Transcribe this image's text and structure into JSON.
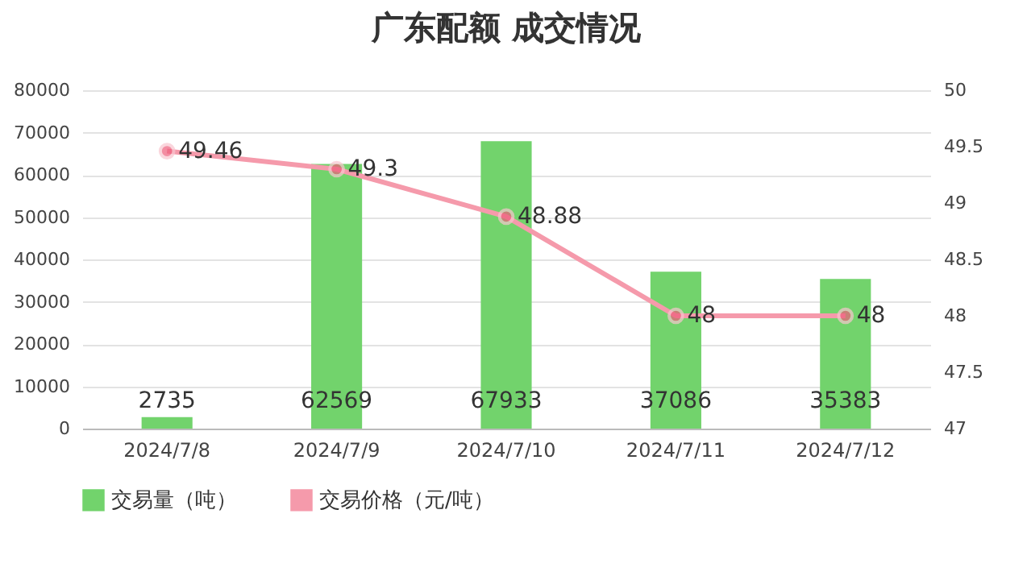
{
  "chart_data": {
    "type": "bar",
    "title": "广东配额 成交情况",
    "categories": [
      "2024/7/8",
      "2024/7/9",
      "2024/7/10",
      "2024/7/11",
      "2024/7/12"
    ],
    "series": [
      {
        "name": "交易量（吨）",
        "color": "#72d36c",
        "values": [
          2735,
          62569,
          67933,
          37086,
          35383
        ]
      },
      {
        "name": "交易价格（元/吨）",
        "type": "line",
        "axis": "y2",
        "color": "#f59aab",
        "marker": "circle",
        "values": [
          49.46,
          49.3,
          48.88,
          48,
          48
        ]
      }
    ],
    "ylim": [
      0,
      80000
    ],
    "yticks": [
      0,
      10000,
      20000,
      30000,
      40000,
      50000,
      60000,
      70000,
      80000
    ],
    "y2lim": [
      47,
      50
    ],
    "y2ticks": [
      47,
      47.5,
      48,
      48.5,
      49,
      49.5,
      50
    ],
    "grid": "y",
    "legend": "bottom",
    "data_labels": true
  }
}
